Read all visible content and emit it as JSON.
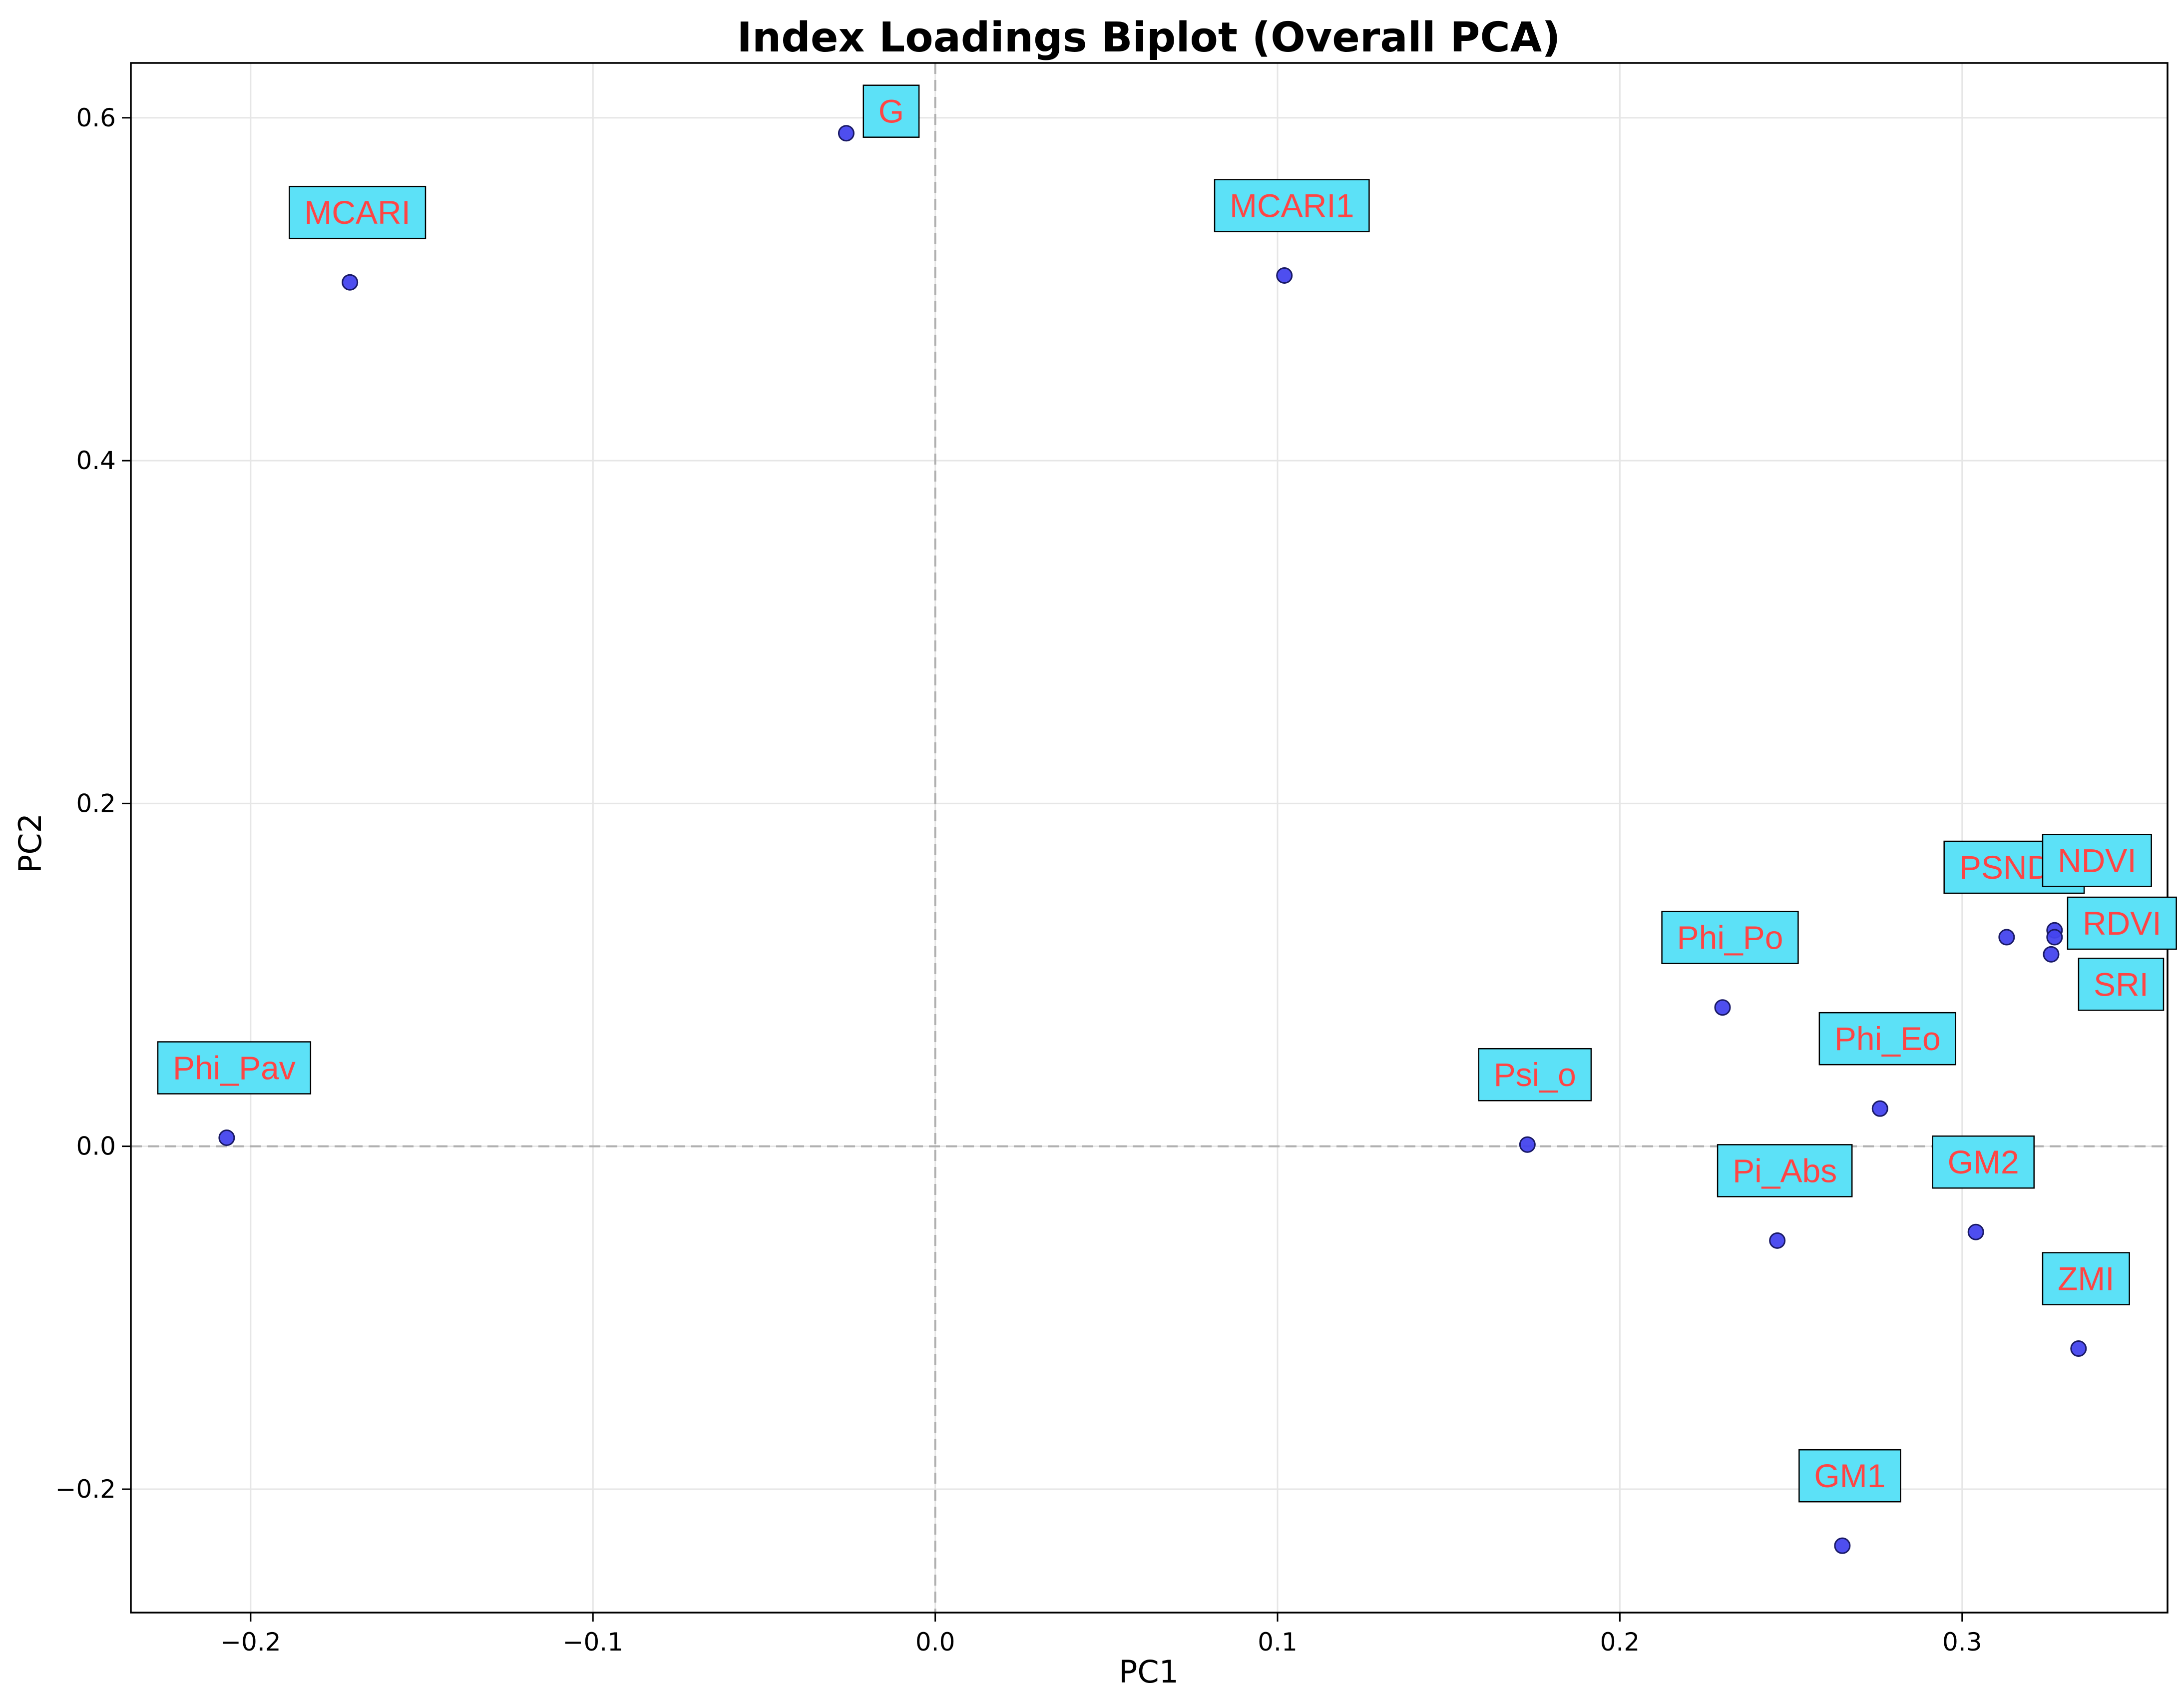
{
  "chart_data": {
    "type": "scatter",
    "title": "Index Loadings Biplot (Overall PCA)",
    "xlabel": "PC1",
    "ylabel": "PC2",
    "xlim": [
      -0.235,
      0.36
    ],
    "ylim": [
      -0.272,
      0.632
    ],
    "xticks": [
      -0.2,
      -0.1,
      0.0,
      0.1,
      0.2,
      0.3
    ],
    "xtick_labels": [
      "−0.2",
      "−0.1",
      "0.0",
      "0.1",
      "0.2",
      "0.3"
    ],
    "yticks": [
      -0.2,
      0.0,
      0.2,
      0.4,
      0.6
    ],
    "ytick_labels": [
      "−0.2",
      "0.0",
      "0.2",
      "0.4",
      "0.6"
    ],
    "grid": true,
    "reference_lines": {
      "x": 0.0,
      "y": 0.0,
      "style": "dashed"
    },
    "points": [
      {
        "label": "G",
        "x": -0.026,
        "y": 0.591
      },
      {
        "label": "MCARI",
        "x": -0.171,
        "y": 0.504
      },
      {
        "label": "MCARI1",
        "x": 0.102,
        "y": 0.508
      },
      {
        "label": "Phi_Pav",
        "x": -0.207,
        "y": 0.005
      },
      {
        "label": "Psi_o",
        "x": 0.173,
        "y": 0.001
      },
      {
        "label": "Phi_Po",
        "x": 0.23,
        "y": 0.081
      },
      {
        "label": "Phi_Eo",
        "x": 0.276,
        "y": 0.022
      },
      {
        "label": "Pi_Abs",
        "x": 0.246,
        "y": -0.055
      },
      {
        "label": "PSNDa",
        "x": 0.313,
        "y": 0.122
      },
      {
        "label": "NDVI",
        "x": 0.327,
        "y": 0.126
      },
      {
        "label": "RDVI",
        "x": 0.327,
        "y": 0.122
      },
      {
        "label": "SRI",
        "x": 0.326,
        "y": 0.112
      },
      {
        "label": "GM2",
        "x": 0.304,
        "y": -0.05
      },
      {
        "label": "ZMI",
        "x": 0.334,
        "y": -0.118
      },
      {
        "label": "GM1",
        "x": 0.265,
        "y": -0.233
      }
    ],
    "colors": {
      "marker_fill": "#4444ee",
      "marker_edge": "#1a1a66",
      "label_text": "#ff4444",
      "label_box": "#5ce1f7",
      "grid": "#e6e6e6",
      "reference_line": "#b0b0b0"
    }
  }
}
